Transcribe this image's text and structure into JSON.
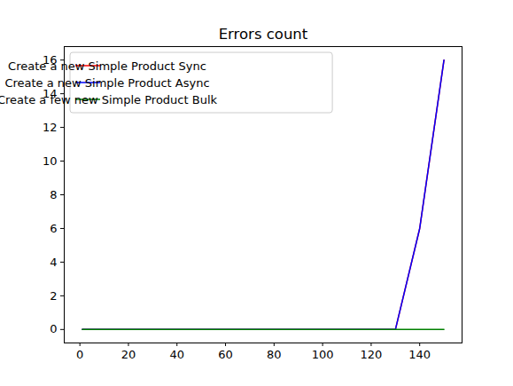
{
  "chart_data": {
    "type": "line",
    "title": "Errors count",
    "x": [
      1,
      10,
      20,
      30,
      40,
      50,
      60,
      70,
      80,
      90,
      100,
      110,
      120,
      130,
      140,
      150
    ],
    "series": [
      {
        "name": "Create a new Simple Product Sync",
        "color": "#ff0000",
        "values": [
          0,
          0,
          0,
          0,
          0,
          0,
          0,
          0,
          0,
          0,
          0,
          0,
          0,
          0,
          6,
          16
        ]
      },
      {
        "name": "Create a new Simple Product Async",
        "color": "#0000ff",
        "values": [
          0,
          0,
          0,
          0,
          0,
          0,
          0,
          0,
          0,
          0,
          0,
          0,
          0,
          0,
          6,
          16
        ]
      },
      {
        "name": "Create a few new Simple Product Bulk",
        "color": "#008000",
        "values": [
          0,
          0,
          0,
          0,
          0,
          0,
          0,
          0,
          0,
          0,
          0,
          0,
          0,
          0,
          0,
          0
        ]
      }
    ],
    "xlim": [
      -6.45,
      157.45
    ],
    "ylim": [
      -0.8,
      16.8
    ],
    "xticks": [
      0,
      20,
      40,
      60,
      80,
      100,
      120,
      140
    ],
    "yticks": [
      0,
      2,
      4,
      6,
      8,
      10,
      12,
      14,
      16
    ],
    "legend": "upper left",
    "grid": false
  }
}
